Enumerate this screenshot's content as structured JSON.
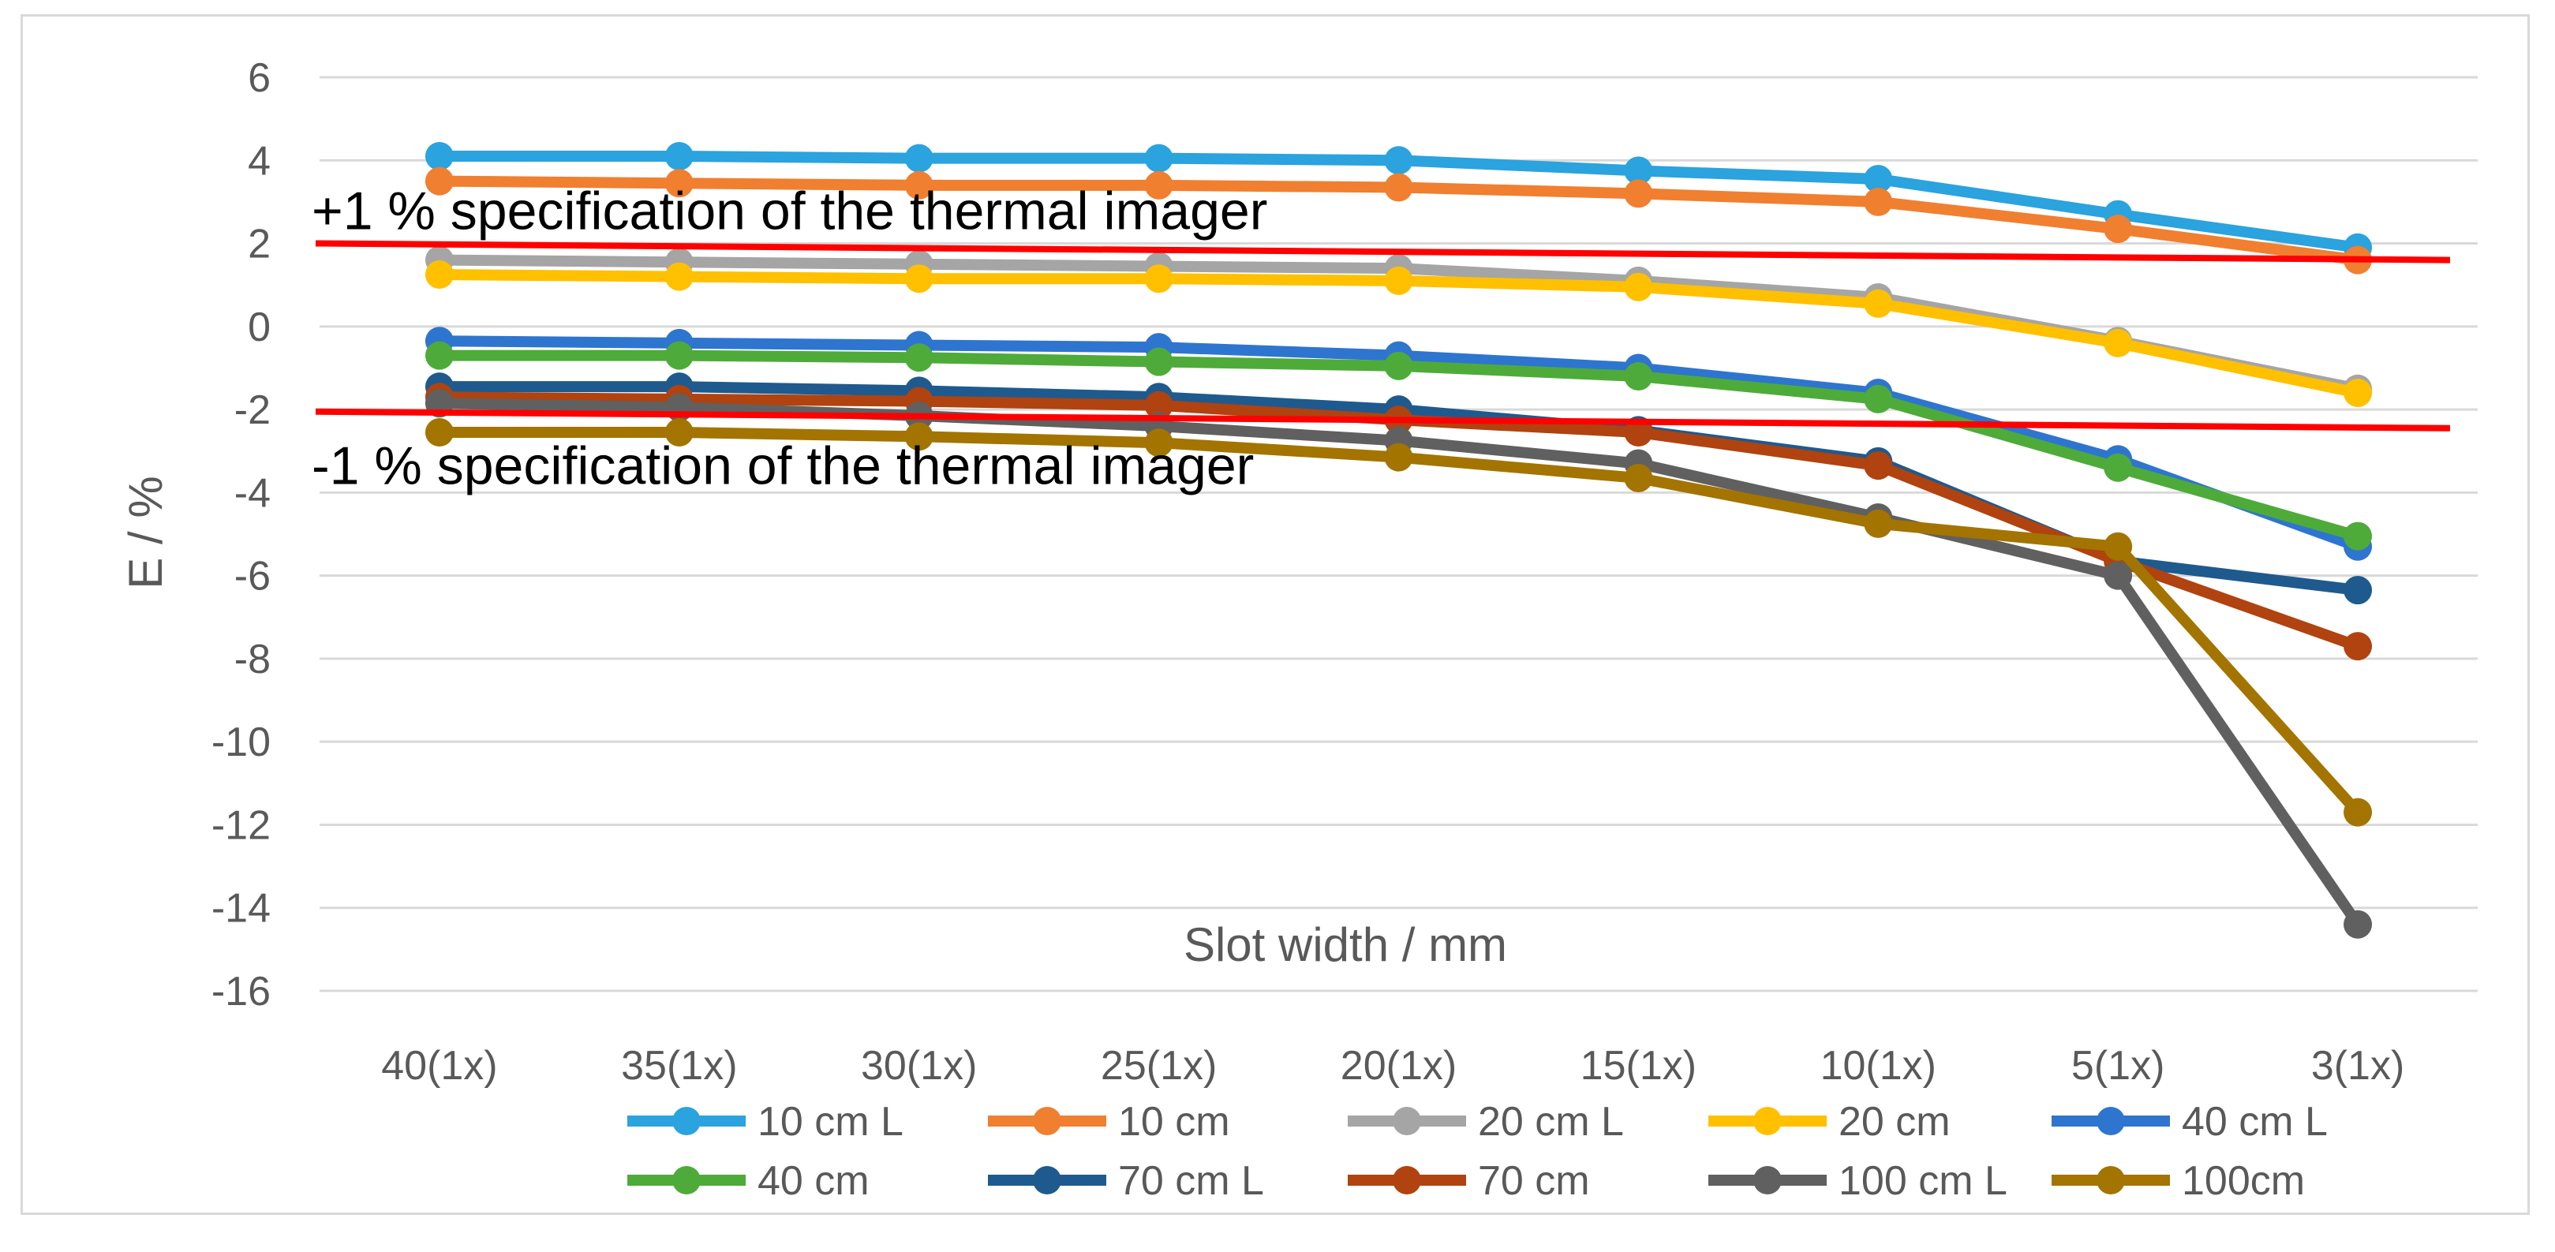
{
  "chart_data": {
    "type": "line",
    "title": "",
    "xlabel": "Slot width / mm",
    "ylabel": "E / %",
    "ylim": [
      -16,
      6
    ],
    "yticks": [
      "6",
      "4",
      "2",
      "0",
      "-2",
      "-4",
      "-6",
      "-8",
      "-10",
      "-12",
      "-14",
      "-16"
    ],
    "categories": [
      "40(1x)",
      "35(1x)",
      "30(1x)",
      "25(1x)",
      "20(1x)",
      "15(1x)",
      "10(1x)",
      "5(1x)",
      "3(1x)"
    ],
    "grid": true,
    "legend_position": "bottom",
    "series": [
      {
        "name": "10 cm L",
        "color": "#2AA3DE",
        "values": [
          4.1,
          4.1,
          4.05,
          4.05,
          4.0,
          3.75,
          3.55,
          2.7,
          1.9
        ]
      },
      {
        "name": "10 cm",
        "color": "#F07F30",
        "values": [
          3.5,
          3.45,
          3.4,
          3.4,
          3.35,
          3.2,
          3.0,
          2.35,
          1.6
        ]
      },
      {
        "name": "20 cm L",
        "color": "#A5A5A5",
        "values": [
          1.6,
          1.55,
          1.5,
          1.45,
          1.4,
          1.1,
          0.7,
          -0.35,
          -1.5
        ]
      },
      {
        "name": "20 cm",
        "color": "#FFC000",
        "values": [
          1.25,
          1.2,
          1.15,
          1.15,
          1.1,
          0.95,
          0.55,
          -0.4,
          -1.6
        ]
      },
      {
        "name": "40 cm L",
        "color": "#2E75CF",
        "values": [
          -0.35,
          -0.4,
          -0.45,
          -0.5,
          -0.7,
          -1.0,
          -1.6,
          -3.2,
          -5.3
        ]
      },
      {
        "name": "40 cm",
        "color": "#4EAB3A",
        "values": [
          -0.7,
          -0.7,
          -0.75,
          -0.85,
          -0.95,
          -1.2,
          -1.75,
          -3.4,
          -5.05
        ]
      },
      {
        "name": "70 cm L",
        "color": "#1F5A8E",
        "values": [
          -1.45,
          -1.45,
          -1.55,
          -1.7,
          -2.0,
          -2.5,
          -3.25,
          -5.65,
          -6.35
        ]
      },
      {
        "name": "70 cm",
        "color": "#B0430F",
        "values": [
          -1.7,
          -1.75,
          -1.8,
          -1.9,
          -2.25,
          -2.55,
          -3.35,
          -5.65,
          -7.7
        ]
      },
      {
        "name": "100 cm L",
        "color": "#606060",
        "values": [
          -1.85,
          -1.95,
          -2.15,
          -2.4,
          -2.75,
          -3.3,
          -4.6,
          -6.0,
          -14.4
        ]
      },
      {
        "name": "100cm",
        "color": "#A37400",
        "values": [
          -2.55,
          -2.55,
          -2.65,
          -2.8,
          -3.15,
          -3.65,
          -4.75,
          -5.3,
          -11.7
        ]
      }
    ],
    "reference_lines": [
      {
        "label": "+1 % specification of the thermal imager",
        "color": "#FF0000",
        "start": 2.0,
        "end": 1.6
      },
      {
        "label": "-1 % specification of the thermal imager",
        "color": "#FF0000",
        "start": -2.05,
        "end": -2.45
      }
    ]
  }
}
